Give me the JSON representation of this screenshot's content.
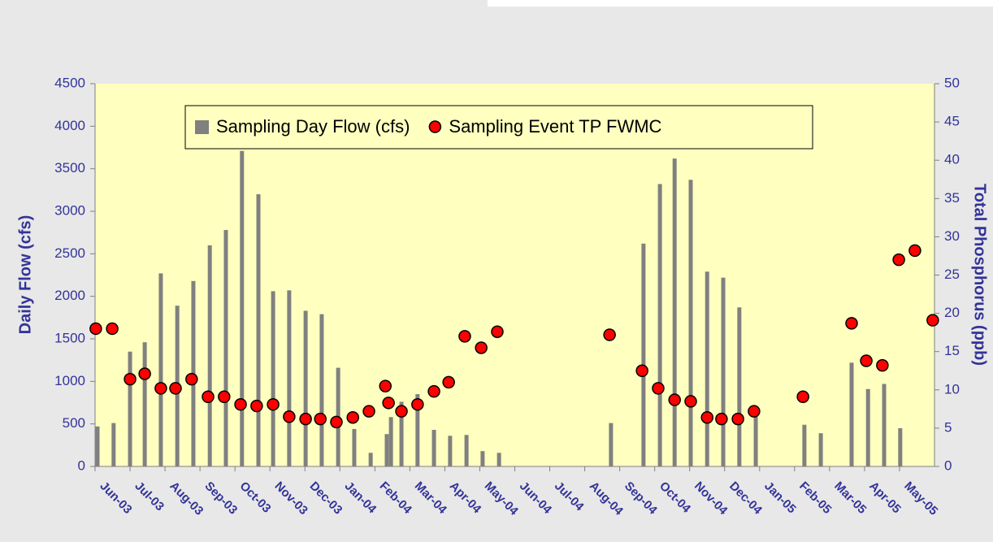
{
  "chart_data": {
    "type": "combo",
    "y_label": "Daily Flow (cfs)",
    "y2_label": "Total Phosphorus (ppb)",
    "xlim": [
      0,
      24
    ],
    "xticks": [
      {
        "value": 0,
        "label": "Jun-03"
      },
      {
        "value": 1,
        "label": "Jul-03"
      },
      {
        "value": 2,
        "label": "Aug-03"
      },
      {
        "value": 3,
        "label": "Sep-03"
      },
      {
        "value": 4,
        "label": "Oct-03"
      },
      {
        "value": 5,
        "label": "Nov-03"
      },
      {
        "value": 6,
        "label": "Dec-03"
      },
      {
        "value": 7,
        "label": "Jan-04"
      },
      {
        "value": 8,
        "label": "Feb-04"
      },
      {
        "value": 9,
        "label": "Mar-04"
      },
      {
        "value": 10,
        "label": "Apr-04"
      },
      {
        "value": 11,
        "label": "May-04"
      },
      {
        "value": 12,
        "label": "Jun-04"
      },
      {
        "value": 13,
        "label": "Jul-04"
      },
      {
        "value": 14,
        "label": "Aug-04"
      },
      {
        "value": 15,
        "label": "Sep-04"
      },
      {
        "value": 16,
        "label": "Oct-04"
      },
      {
        "value": 17,
        "label": "Nov-04"
      },
      {
        "value": 18,
        "label": "Dec-04"
      },
      {
        "value": 19,
        "label": "Jan-05"
      },
      {
        "value": 20,
        "label": "Feb-05"
      },
      {
        "value": 21,
        "label": "Mar-05"
      },
      {
        "value": 22,
        "label": "Apr-05"
      },
      {
        "value": 23,
        "label": "May-05"
      }
    ],
    "ylim": [
      0,
      4500
    ],
    "yticks": [
      0,
      500,
      1000,
      1500,
      2000,
      2500,
      3000,
      3500,
      4000,
      4500
    ],
    "y2lim": [
      0,
      50
    ],
    "y2ticks": [
      0,
      5,
      10,
      15,
      20,
      25,
      30,
      35,
      40,
      45,
      50
    ],
    "legend": "top",
    "series": [
      {
        "name": "Sampling Day Flow (cfs)",
        "type": "bar",
        "color": "#808080",
        "x": [
          0.07,
          0.53,
          1.0,
          1.42,
          1.88,
          2.35,
          2.81,
          3.28,
          3.74,
          4.2,
          4.67,
          5.09,
          5.55,
          6.02,
          6.48,
          6.95,
          7.41,
          7.88,
          8.34,
          8.46,
          8.76,
          9.22,
          9.69,
          10.15,
          10.62,
          11.08,
          11.55,
          14.75,
          15.68,
          16.15,
          16.57,
          17.03,
          17.5,
          17.96,
          18.42,
          18.89,
          20.28,
          20.75,
          21.63,
          22.1,
          22.56,
          23.02
        ],
        "values": [
          470,
          510,
          1350,
          1460,
          2270,
          1890,
          2180,
          2600,
          2780,
          3710,
          3200,
          2060,
          2070,
          1830,
          1790,
          1160,
          440,
          160,
          380,
          580,
          760,
          850,
          430,
          360,
          370,
          180,
          160,
          510,
          2620,
          3320,
          3620,
          3370,
          2290,
          2220,
          1870,
          650,
          490,
          390,
          1220,
          910,
          970,
          450
        ]
      },
      {
        "name": "Sampling Event TP FWMC",
        "type": "scatter",
        "axis": "y2",
        "color": "#ff0000",
        "x": [
          0.02,
          0.49,
          1.0,
          1.42,
          1.88,
          2.3,
          2.76,
          3.23,
          3.69,
          4.16,
          4.62,
          5.09,
          5.55,
          6.02,
          6.44,
          6.9,
          7.37,
          7.83,
          8.3,
          8.39,
          8.76,
          9.22,
          9.69,
          10.11,
          10.57,
          11.04,
          11.5,
          14.71,
          15.64,
          16.1,
          16.57,
          17.03,
          17.5,
          17.91,
          18.38,
          18.84,
          20.24,
          21.63,
          22.05,
          22.51,
          22.98,
          23.44,
          23.95
        ],
        "values": [
          18.0,
          18.0,
          11.4,
          12.1,
          10.2,
          10.2,
          11.4,
          9.1,
          9.1,
          8.1,
          7.9,
          8.1,
          6.5,
          6.2,
          6.2,
          5.8,
          6.4,
          7.2,
          10.5,
          8.3,
          7.2,
          8.1,
          9.8,
          11.0,
          17.0,
          15.5,
          17.6,
          17.2,
          12.5,
          10.2,
          8.7,
          8.5,
          6.4,
          6.2,
          6.2,
          7.2,
          9.1,
          18.7,
          13.8,
          13.2,
          27.0,
          28.2,
          19.1
        ]
      }
    ]
  }
}
